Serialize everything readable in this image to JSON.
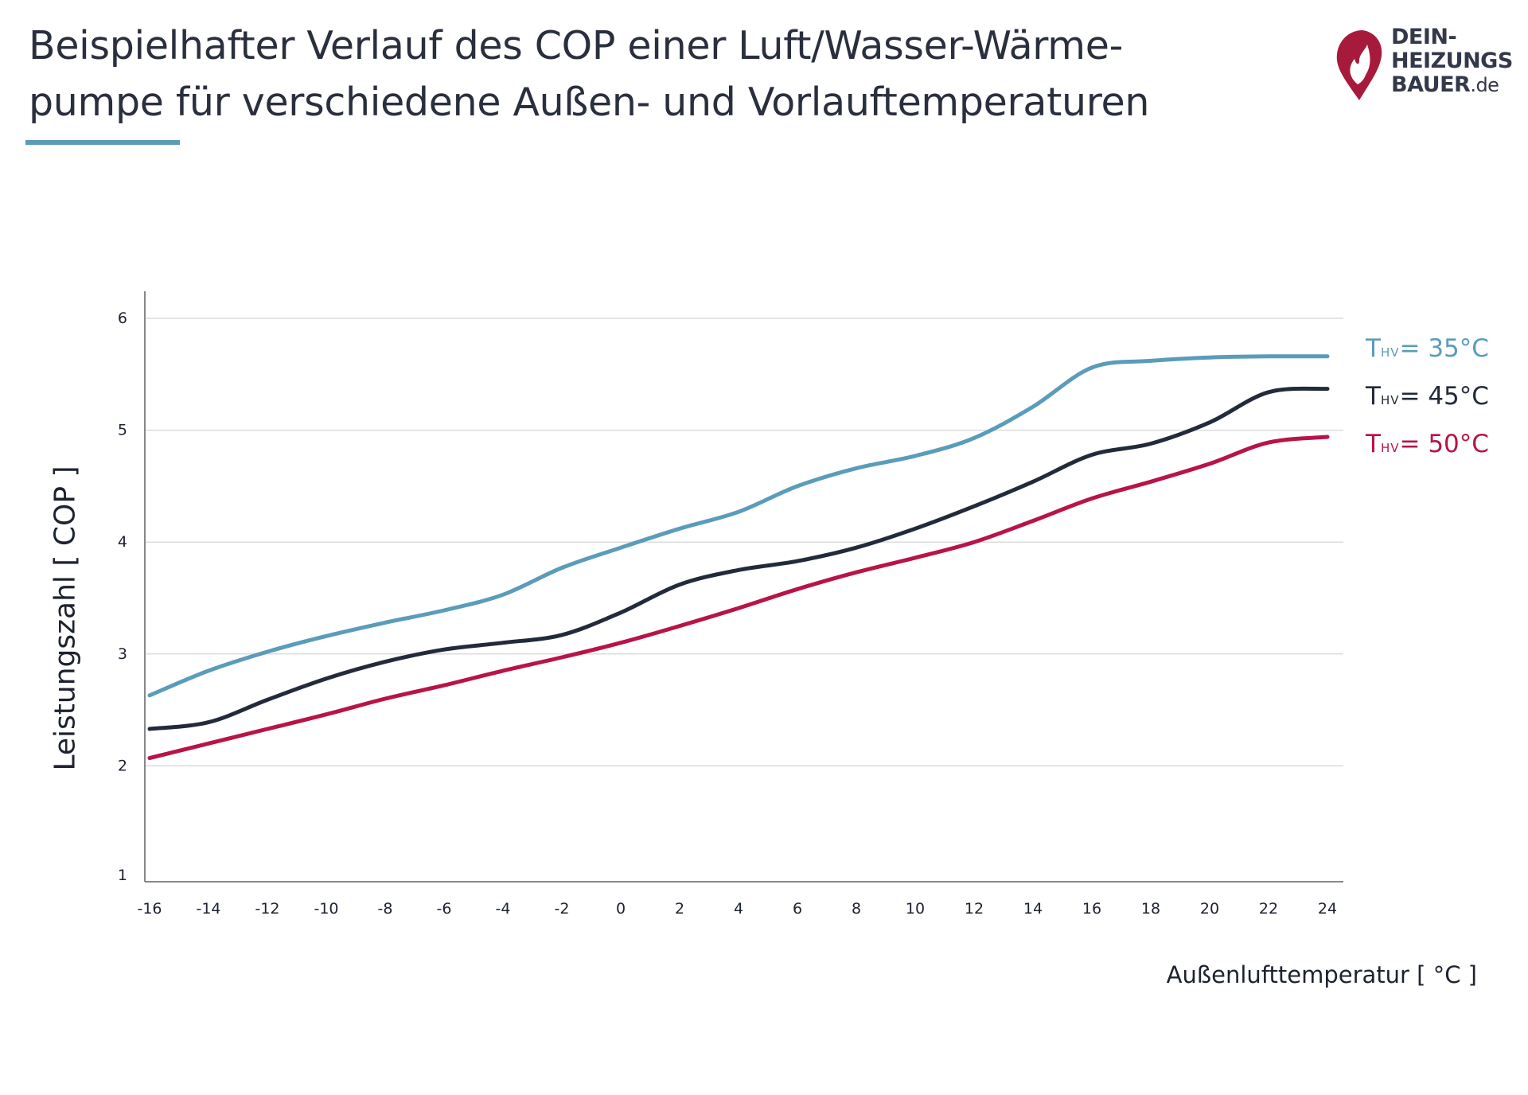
{
  "title": {
    "line1": "Beispielhafter Verlauf des COP einer Luft/Wasser-Wärme-",
    "line2": "pumpe für verschiedene Außen- und Vorlauftemperaturen"
  },
  "logo": {
    "line1": "DEIN-",
    "line2": "HEIZUNGS",
    "line3": "BAUER",
    "tld": ".de"
  },
  "colors": {
    "accent": "#5b9cba",
    "series_35": "#5a9cba",
    "series_45": "#222a3b",
    "series_50": "#b81447",
    "grid": "#dcdcdc",
    "axis": "#888888",
    "logo_red": "#a81a3c"
  },
  "legend": [
    {
      "prefix": "T",
      "sub": "HV",
      "suffix": "= 35°C"
    },
    {
      "prefix": "T",
      "sub": "HV",
      "suffix": "= 45°C"
    },
    {
      "prefix": "T",
      "sub": "HV",
      "suffix": "= 50°C"
    }
  ],
  "chart_data": {
    "type": "line",
    "title": "Beispielhafter Verlauf des COP einer Luft/Wasser-Wärmepumpe für verschiedene Außen- und Vorlauftemperaturen",
    "xlabel": "Außenlufttemperatur [ °C ]",
    "ylabel": "Leistungszahl [ COP ]",
    "xlim": [
      -16,
      24
    ],
    "ylim": [
      1,
      6
    ],
    "grid": true,
    "legend_position": "right",
    "x_ticks": [
      -16,
      -14,
      -12,
      -10,
      -8,
      -6,
      -4,
      -2,
      0,
      2,
      4,
      6,
      8,
      10,
      12,
      14,
      16,
      18,
      20,
      22,
      24
    ],
    "y_ticks": [
      1,
      2,
      3,
      4,
      5,
      6
    ],
    "x": [
      -16,
      -14,
      -12,
      -10,
      -8,
      -6,
      -4,
      -2,
      0,
      2,
      4,
      6,
      8,
      10,
      12,
      14,
      16,
      18,
      20,
      22,
      24
    ],
    "series": [
      {
        "name": "THV = 35°C",
        "values": [
          2.63,
          2.85,
          3.02,
          3.16,
          3.28,
          3.39,
          3.53,
          3.77,
          3.95,
          4.12,
          4.27,
          4.5,
          4.66,
          4.77,
          4.93,
          5.21,
          5.56,
          5.62,
          5.65,
          5.66,
          5.66
        ]
      },
      {
        "name": "THV = 45°C",
        "values": [
          2.33,
          2.39,
          2.59,
          2.78,
          2.93,
          3.04,
          3.1,
          3.17,
          3.37,
          3.62,
          3.75,
          3.83,
          3.95,
          4.12,
          4.32,
          4.54,
          4.78,
          4.88,
          5.07,
          5.34,
          5.37
        ]
      },
      {
        "name": "THV = 50°C",
        "values": [
          2.07,
          2.2,
          2.33,
          2.46,
          2.6,
          2.72,
          2.85,
          2.97,
          3.1,
          3.25,
          3.41,
          3.58,
          3.73,
          3.86,
          4.0,
          4.19,
          4.39,
          4.54,
          4.7,
          4.89,
          4.94
        ]
      }
    ]
  }
}
